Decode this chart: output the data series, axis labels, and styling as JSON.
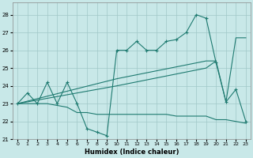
{
  "xlabel": "Humidex (Indice chaleur)",
  "xlim": [
    -0.5,
    23.5
  ],
  "ylim": [
    21.0,
    28.7
  ],
  "yticks": [
    21,
    22,
    23,
    24,
    25,
    26,
    27,
    28
  ],
  "xticks": [
    0,
    1,
    2,
    3,
    4,
    5,
    6,
    7,
    8,
    9,
    10,
    11,
    12,
    13,
    14,
    15,
    16,
    17,
    18,
    19,
    20,
    21,
    22,
    23
  ],
  "bg_color": "#c8e8e8",
  "grid_color": "#a0c8c8",
  "line_color": "#1e7a70",
  "line1_x": [
    0,
    1,
    2,
    3,
    4,
    5,
    6,
    7,
    8,
    9,
    10,
    11,
    12,
    13,
    14,
    15,
    16,
    17,
    18,
    19,
    20,
    21,
    22,
    23
  ],
  "line1_y": [
    23.0,
    23.6,
    23.0,
    24.2,
    23.0,
    24.2,
    23.0,
    21.6,
    21.4,
    21.2,
    26.0,
    26.0,
    26.5,
    26.0,
    26.0,
    26.5,
    26.6,
    27.0,
    28.0,
    27.8,
    25.3,
    23.1,
    23.8,
    22.0
  ],
  "line2_x": [
    0,
    5,
    10,
    19,
    20,
    21,
    22,
    23
  ],
  "line2_y": [
    23.0,
    23.7,
    24.4,
    25.4,
    25.4,
    23.1,
    26.7,
    26.7
  ],
  "line3_x": [
    0,
    10,
    19,
    20
  ],
  "line3_y": [
    23.0,
    24.0,
    25.0,
    25.4
  ],
  "line4_x": [
    0,
    1,
    2,
    3,
    4,
    5,
    6,
    7,
    8,
    9,
    10,
    11,
    12,
    13,
    14,
    15,
    16,
    17,
    18,
    19,
    20,
    21,
    22,
    23
  ],
  "line4_y": [
    23.0,
    23.0,
    23.0,
    23.0,
    22.9,
    22.8,
    22.5,
    22.5,
    22.4,
    22.4,
    22.4,
    22.4,
    22.4,
    22.4,
    22.4,
    22.4,
    22.3,
    22.3,
    22.3,
    22.3,
    22.1,
    22.1,
    22.0,
    21.9
  ]
}
